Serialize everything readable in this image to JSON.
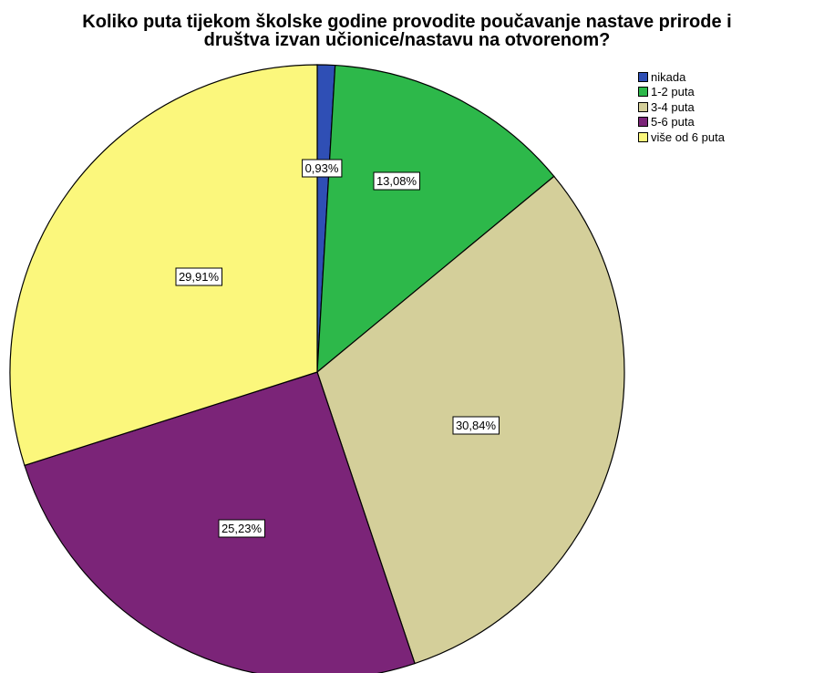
{
  "chart_data": {
    "type": "pie",
    "title_line1": "Koliko puta tijekom školske godine provodite poučavanje nastave prirode i",
    "title_line2": "društva izvan učionice/nastavu na otvorenom?",
    "slices": [
      {
        "label": "nikada",
        "value": 0.93,
        "display": "0,93%",
        "color": "#2f4fb5"
      },
      {
        "label": "1-2 puta",
        "value": 13.08,
        "display": "13,08%",
        "color": "#2db84a"
      },
      {
        "label": "3-4 puta",
        "value": 30.84,
        "display": "30,84%",
        "color": "#d4cf9a"
      },
      {
        "label": "5-6 puta",
        "value": 25.23,
        "display": "25,23%",
        "color": "#7b2478"
      },
      {
        "label": "više od 6 puta",
        "value": 29.91,
        "display": "29,91%",
        "color": "#fbf77c"
      }
    ],
    "legend_position": "top-right",
    "start_angle": "top, clockwise"
  }
}
